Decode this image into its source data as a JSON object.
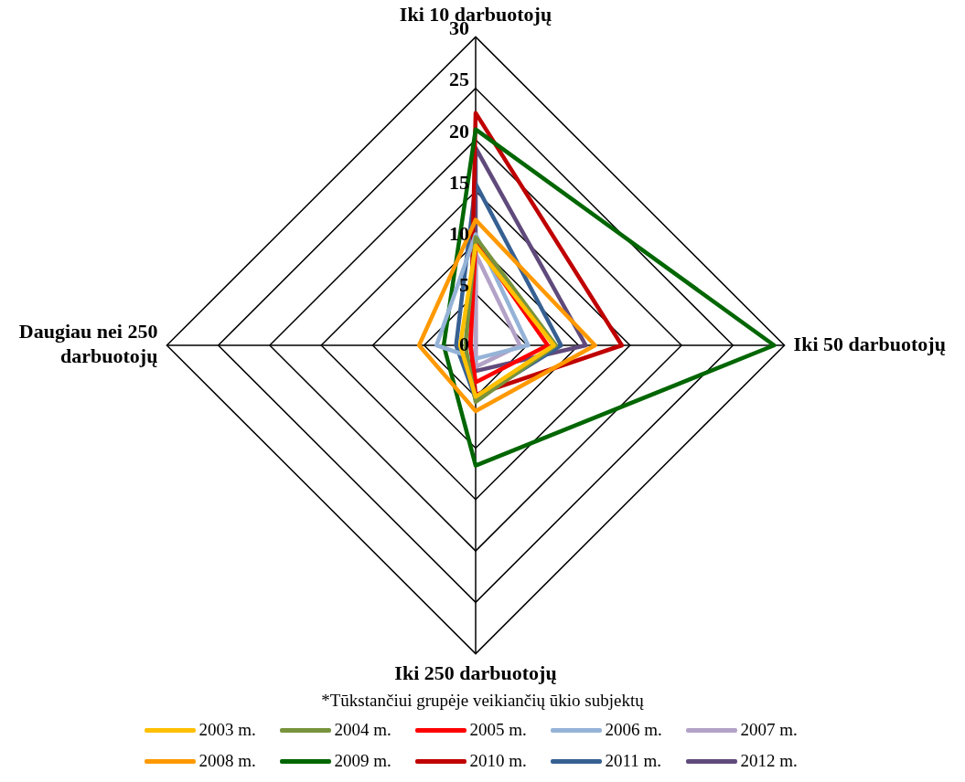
{
  "chart_data": {
    "type": "radar",
    "categories": [
      "Iki 10 darbuotojų",
      "Iki 50 darbuotojų",
      "Iki 250 darbuotojų",
      "Daugiau nei 250 darbuotojų"
    ],
    "ylim": [
      0,
      30
    ],
    "yticks": [
      0,
      5,
      10,
      15,
      20,
      25,
      30
    ],
    "grid": true,
    "legend": "bottom",
    "marker": "none",
    "line_style": "solid",
    "annotations": [
      "*Tūkstančiui grupėje veikiančių ūkio subjektų"
    ],
    "series": [
      {
        "name": "2003 m.",
        "color": "#ffc000",
        "values": [
          9.7,
          7.6,
          5.0,
          1.5
        ]
      },
      {
        "name": "2004 m.",
        "color": "#77933c",
        "values": [
          10.5,
          7.8,
          5.5,
          1.0
        ]
      },
      {
        "name": "2005 m.",
        "color": "#ff0000",
        "values": [
          10.0,
          7.0,
          3.6,
          0.5
        ]
      },
      {
        "name": "2006 m.",
        "color": "#95b3d7",
        "values": [
          10.8,
          5.1,
          1.3,
          3.8
        ]
      },
      {
        "name": "2007 m.",
        "color": "#b3a2c7",
        "values": [
          8.9,
          4.3,
          2.1,
          0
        ]
      },
      {
        "name": "2008 m.",
        "color": "#ff9900",
        "values": [
          12.2,
          11.6,
          6.4,
          5.5
        ]
      },
      {
        "name": "2009 m.",
        "color": "#006600",
        "values": [
          21.0,
          29.0,
          11.7,
          3.1
        ]
      },
      {
        "name": "2010 m.",
        "color": "#c00000",
        "values": [
          22.6,
          14.2,
          4.8,
          0.5
        ]
      },
      {
        "name": "2011 m.",
        "color": "#376092",
        "values": [
          15.7,
          8.3,
          5.2,
          1.9
        ]
      },
      {
        "name": "2012 m.",
        "color": "#604a7b",
        "values": [
          19.2,
          10.7,
          2.5,
          0
        ]
      }
    ]
  }
}
